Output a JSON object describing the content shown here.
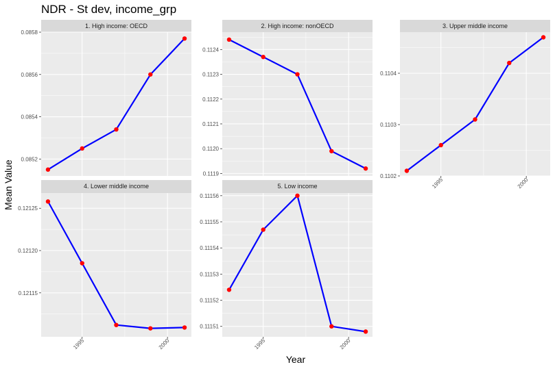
{
  "chart_data": {
    "type": "line",
    "title": "NDR - St dev, income_grp",
    "xlabel": "Year",
    "ylabel": "Mean Value",
    "line_color": "#0000ff",
    "point_color": "#ff0000",
    "x": [
      1993,
      1995,
      1997,
      1999,
      2001
    ],
    "x_ticks": [
      1995,
      2000
    ],
    "facets": [
      {
        "label": "1. High income: OECD",
        "values": [
          0.08515,
          0.08525,
          0.08534,
          0.0856,
          0.08577
        ],
        "ylim": [
          0.08512,
          0.0858
        ],
        "y_ticks": [
          0.0852,
          0.0854,
          0.0856,
          0.0858
        ],
        "y_tick_labels": [
          "0.0852",
          "0.0854",
          "0.0856",
          "0.0858"
        ]
      },
      {
        "label": "2. High income: nonOECD",
        "values": [
          0.11244,
          0.11237,
          0.1123,
          0.11199,
          0.11192
        ],
        "ylim": [
          0.11189,
          0.11247
        ],
        "y_ticks": [
          0.1119,
          0.112,
          0.1121,
          0.1122,
          0.1123,
          0.1124
        ],
        "y_tick_labels": [
          "0.1119",
          "0.1120",
          "0.1121",
          "0.1122",
          "0.1123",
          "0.1124"
        ]
      },
      {
        "label": "3. Upper middle income",
        "values": [
          0.11021,
          0.11026,
          0.11031,
          0.11042,
          0.11047
        ],
        "ylim": [
          0.1102,
          0.11048
        ],
        "y_ticks": [
          0.1102,
          0.1103,
          0.1104
        ],
        "y_tick_labels": [
          "0.1102",
          "0.1103",
          "0.1104"
        ]
      },
      {
        "label": "4. Lower middle income",
        "values": [
          0.121258,
          0.121185,
          0.121112,
          0.121108,
          0.121109
        ],
        "ylim": [
          0.121098,
          0.121268
        ],
        "y_ticks": [
          0.12115,
          0.1212,
          0.12125
        ],
        "y_tick_labels": [
          "0.12115",
          "0.12120",
          "0.12125"
        ]
      },
      {
        "label": "5. Low income",
        "values": [
          0.111524,
          0.111547,
          0.11156,
          0.11151,
          0.111508
        ],
        "ylim": [
          0.111506,
          0.111561
        ],
        "y_ticks": [
          0.11151,
          0.11152,
          0.11153,
          0.11154,
          0.11155,
          0.11156
        ],
        "y_tick_labels": [
          "0.11151",
          "0.11152",
          "0.11153",
          "0.11154",
          "0.11155",
          "0.11156"
        ]
      }
    ]
  }
}
